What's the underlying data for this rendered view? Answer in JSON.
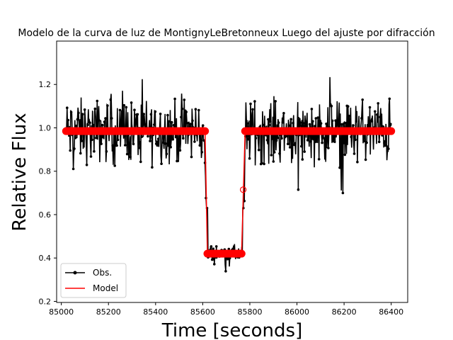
{
  "chart_data": {
    "type": "line",
    "title": "Modelo de la curva de luz de MontignyLeBretonneux Luego del ajuste por difracción",
    "xlabel": "Time [seconds]",
    "ylabel": "Relative Flux",
    "xlim": [
      84980,
      86470
    ],
    "ylim": [
      0.195,
      1.4
    ],
    "xticks": [
      85000,
      85200,
      85400,
      85600,
      85800,
      86000,
      86200,
      86400
    ],
    "yticks": [
      0.2,
      0.4,
      0.6,
      0.8,
      1.0,
      1.2
    ],
    "xtick_labels": [
      "85000",
      "85200",
      "85400",
      "85600",
      "85800",
      "86000",
      "86200",
      "86400"
    ],
    "ytick_labels": [
      "0.2",
      "0.4",
      "0.6",
      "0.8",
      "1.0",
      "1.2"
    ],
    "grid": false,
    "legend_position": "lower-left",
    "series": [
      {
        "name": "Obs.",
        "color": "#000000",
        "marker": "dot",
        "description_points": [
          [
            85020,
            0.98
          ],
          [
            85060,
            1.02
          ],
          [
            85100,
            0.95
          ],
          [
            85140,
            1.0
          ],
          [
            85180,
            0.97
          ],
          [
            85220,
            1.01
          ],
          [
            85260,
            0.99
          ],
          [
            85300,
            0.96
          ],
          [
            85340,
            1.03
          ],
          [
            85380,
            0.98
          ],
          [
            85420,
            1.0
          ],
          [
            85460,
            0.97
          ],
          [
            85500,
            1.02
          ],
          [
            85540,
            0.99
          ],
          [
            85580,
            0.98
          ],
          [
            85600,
            0.92
          ],
          [
            85620,
            0.45
          ],
          [
            85640,
            0.41
          ],
          [
            85660,
            0.4
          ],
          [
            85680,
            0.42
          ],
          [
            85700,
            0.4
          ],
          [
            85720,
            0.41
          ],
          [
            85740,
            0.42
          ],
          [
            85760,
            0.43
          ],
          [
            85780,
            0.85
          ],
          [
            85800,
            0.99
          ],
          [
            85840,
            1.02
          ],
          [
            85880,
            0.97
          ],
          [
            85920,
            1.01
          ],
          [
            85960,
            0.98
          ],
          [
            86000,
            1.0
          ],
          [
            86040,
            0.96
          ],
          [
            86080,
            1.03
          ],
          [
            86120,
            0.99
          ],
          [
            86160,
            0.97
          ],
          [
            86200,
            1.0
          ],
          [
            86240,
            0.98
          ],
          [
            86280,
            0.95
          ],
          [
            86320,
            1.02
          ],
          [
            86360,
            0.97
          ],
          [
            86400,
            0.99
          ]
        ],
        "noise_range": {
          "out_of_transit": [
            0.63,
            1.34
          ],
          "in_transit": [
            0.25,
            0.5
          ]
        }
      },
      {
        "name": "Model",
        "color": "#ff0000",
        "marker": "circle",
        "segments": [
          {
            "x_start": 85020,
            "x_end": 85610,
            "y": 0.985
          },
          {
            "x_start": 85610,
            "x_end": 85620,
            "y_start": 0.985,
            "y_end": 0.42
          },
          {
            "x_start": 85620,
            "x_end": 85765,
            "y": 0.42
          },
          {
            "x_start": 85765,
            "x_end": 85780,
            "y_start": 0.42,
            "y_end": 0.985
          },
          {
            "x_start": 85780,
            "x_end": 86400,
            "y": 0.985
          }
        ],
        "intermediate_points": [
          [
            85772,
            0.715
          ]
        ]
      }
    ]
  }
}
